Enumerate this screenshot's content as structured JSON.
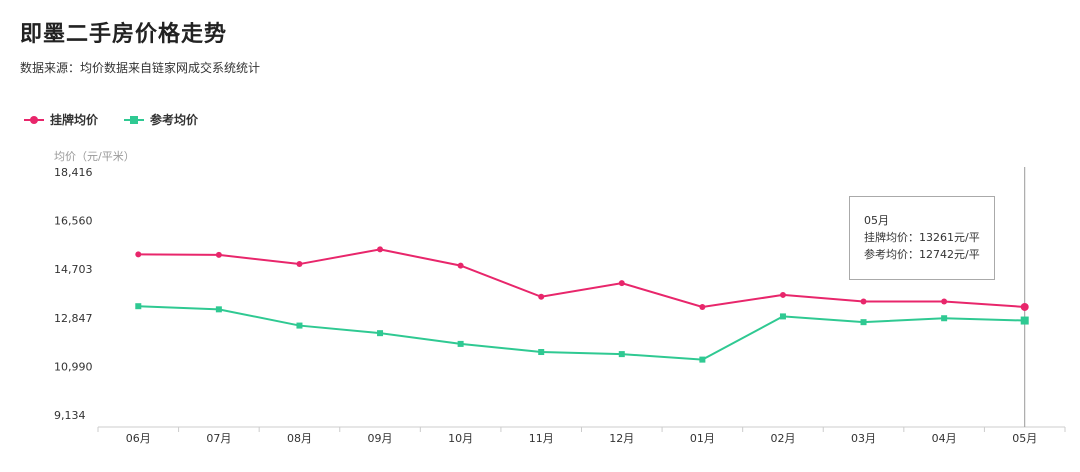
{
  "title": "即墨二手房价格走势",
  "subtitle": "数据来源：均价数据来自链家网成交系统统计",
  "colors": {
    "series1": "#e8266b",
    "series2": "#2fc992",
    "axis": "#cccccc",
    "crosshair": "#999999"
  },
  "chart_data": {
    "type": "line",
    "ylabel": "均价（元/平米）",
    "ylim": [
      9134,
      18416
    ],
    "yticks": [
      "18,416",
      "16,560",
      "14,703",
      "12,847",
      "10,990",
      "9,134"
    ],
    "ytick_values": [
      18416,
      16560,
      14703,
      12847,
      10990,
      9134
    ],
    "categories": [
      "06月",
      "07月",
      "08月",
      "09月",
      "10月",
      "11月",
      "12月",
      "01月",
      "02月",
      "03月",
      "04月",
      "05月"
    ],
    "legend_position": "top-left",
    "grid": false,
    "series": [
      {
        "name": "挂牌均价",
        "marker": "circle",
        "values": [
          15270,
          15250,
          14900,
          15460,
          14840,
          13650,
          14170,
          13261,
          13720,
          13470,
          13470,
          13261
        ]
      },
      {
        "name": "参考均价",
        "marker": "square",
        "values": [
          13290,
          13170,
          12550,
          12260,
          11850,
          11540,
          11460,
          11250,
          12900,
          12680,
          12830,
          12742
        ]
      }
    ],
    "tooltip": {
      "category": "05月",
      "lines": [
        "挂牌均价：13261元/平",
        "参考均价：12742元/平"
      ]
    }
  }
}
